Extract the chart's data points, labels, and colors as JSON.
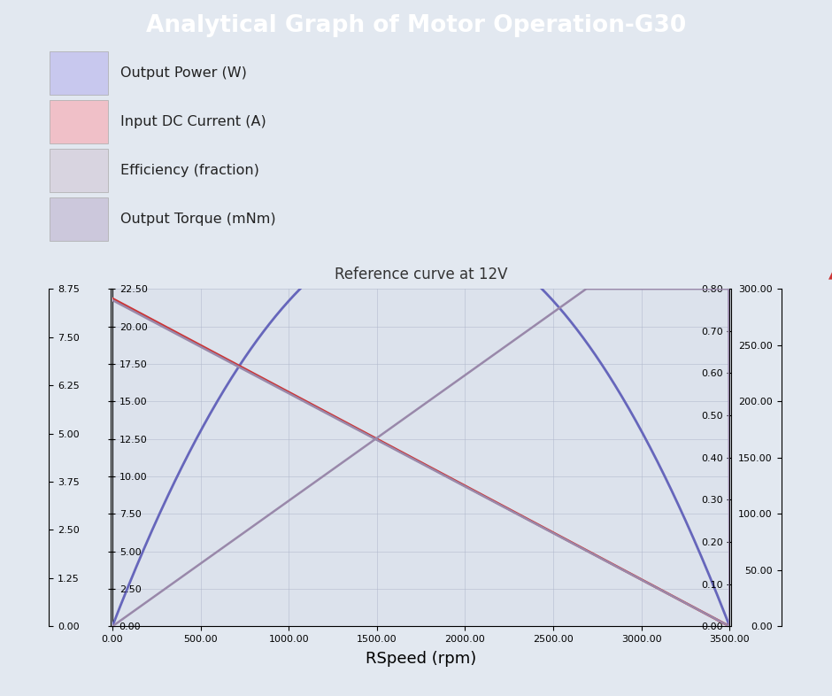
{
  "title": "Analytical Graph of Motor Operation-G30",
  "title_bg_color": "#3d6b9e",
  "title_text_color": "#ffffff",
  "bg_color": "#e2e8f0",
  "plot_bg_color": "#dce2ec",
  "subtitle": "Reference curve at 12V",
  "xlabel": "RSpeed (rpm)",
  "x_min": 0,
  "x_max": 3500,
  "x_ticks": [
    0,
    500,
    1000,
    1500,
    2000,
    2500,
    3000,
    3500
  ],
  "y1_min": 0,
  "y1_max": 22.5,
  "y1_ticks": [
    0.0,
    2.5,
    5.0,
    7.5,
    10.0,
    12.5,
    15.0,
    17.5,
    20.0,
    22.5
  ],
  "y1_band_color": "#c8c8ee",
  "y2_min": 0,
  "y2_max": 8.75,
  "y2_ticks": [
    0.0,
    1.25,
    2.5,
    3.75,
    5.0,
    6.25,
    7.5,
    8.75
  ],
  "y2_band_color": "#f0c0c8",
  "y3_min": 0,
  "y3_max": 0.8,
  "y3_ticks": [
    0.0,
    0.1,
    0.2,
    0.3,
    0.4,
    0.5,
    0.6,
    0.7,
    0.8
  ],
  "y3_band_color": "#d0ccd8",
  "y4_min": 0,
  "y4_max": 300,
  "y4_ticks": [
    0.0,
    50.0,
    100.0,
    150.0,
    200.0,
    250.0,
    300.0
  ],
  "y4_band_color": "#ccc8dc",
  "grid_color": "#b0b8cc",
  "line_power_color": "#6666bb",
  "line_current_color": "#cc3333",
  "line_efficiency_color": "#9988aa",
  "line_torque_color": "#9988aa",
  "legend_items": [
    {
      "color": "#c8c8ee",
      "label": "Output Power (W)"
    },
    {
      "color": "#f0c0c8",
      "label": "Input DC Current (A)"
    },
    {
      "color": "#d8d4e0",
      "label": "Efficiency (fraction)"
    },
    {
      "color": "#ccc8dc",
      "label": "Output Torque (mNm)"
    }
  ]
}
